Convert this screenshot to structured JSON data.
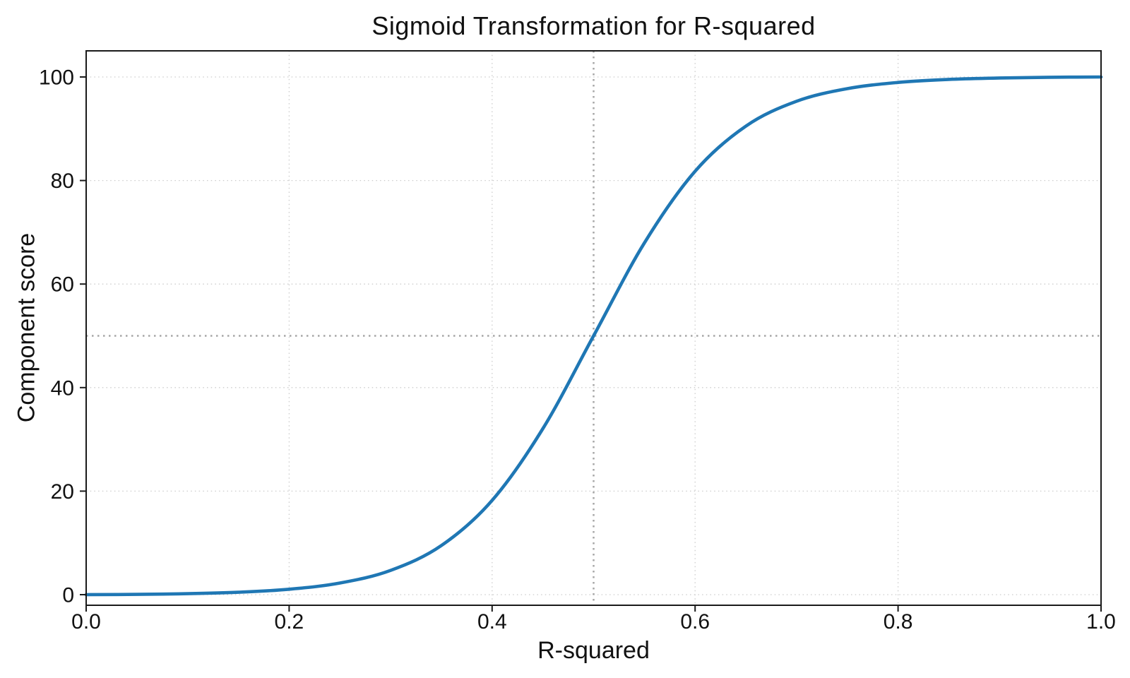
{
  "chart_data": {
    "type": "line",
    "title": "Sigmoid Transformation for R-squared",
    "xlabel": "R-squared",
    "ylabel": "Component score",
    "xlim": [
      0.0,
      1.0
    ],
    "ylim": [
      -2,
      105
    ],
    "x_ticks": [
      0.0,
      0.2,
      0.4,
      0.6,
      0.8,
      1.0
    ],
    "x_tick_labels": [
      "0.0",
      "0.2",
      "0.4",
      "0.6",
      "0.8",
      "1.0"
    ],
    "y_ticks": [
      0,
      20,
      40,
      60,
      80,
      100
    ],
    "y_tick_labels": [
      "0",
      "20",
      "40",
      "60",
      "80",
      "100"
    ],
    "grid": true,
    "legend": "none",
    "series": [
      {
        "name": "sigmoid-curve",
        "color": "#1f77b4",
        "points": [
          [
            0.0,
            0.0
          ],
          [
            0.05,
            0.06
          ],
          [
            0.1,
            0.19
          ],
          [
            0.15,
            0.47
          ],
          [
            0.2,
            1.05
          ],
          [
            0.25,
            2.25
          ],
          [
            0.3,
            4.69
          ],
          [
            0.35,
            9.49
          ],
          [
            0.4,
            18.21
          ],
          [
            0.45,
            32.06
          ],
          [
            0.5,
            50.0
          ],
          [
            0.55,
            67.94
          ],
          [
            0.6,
            81.79
          ],
          [
            0.65,
            90.51
          ],
          [
            0.7,
            95.31
          ],
          [
            0.75,
            97.75
          ],
          [
            0.8,
            98.95
          ],
          [
            0.85,
            99.53
          ],
          [
            0.9,
            99.81
          ],
          [
            0.95,
            99.94
          ],
          [
            1.0,
            100.0
          ]
        ],
        "sigmoid_params": {
          "midpoint": 0.5,
          "steepness": 15,
          "scale": 100,
          "normalized": true
        }
      }
    ],
    "reference_lines": [
      {
        "orientation": "vertical",
        "x": 0.5,
        "color": "#a6a6a6",
        "style": "dotted"
      },
      {
        "orientation": "horizontal",
        "y": 50,
        "color": "#a6a6a6",
        "style": "dotted"
      }
    ],
    "grid_color": "#cccccc",
    "spine_color": "#1a1a1a"
  }
}
